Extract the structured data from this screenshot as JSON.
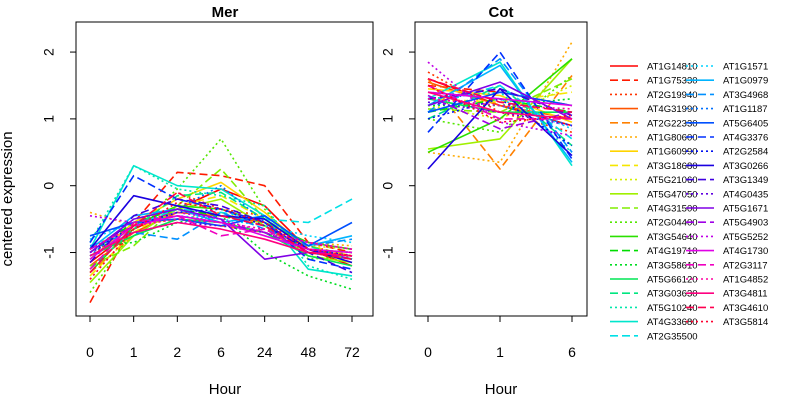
{
  "colors": {
    "AT1G14810": "#FF0000",
    "AT1G75330": "#FF1A00",
    "AT2G19940": "#FF3300",
    "AT4G31990": "#FF5500",
    "AT2G22330": "#FF8000",
    "AT1G80600": "#FFAA00",
    "AT1G60990": "#FFD400",
    "AT3G18680": "#F5E600",
    "AT5G21060": "#D4F000",
    "AT5G47050": "#A0F000",
    "AT4G31500": "#80EE00",
    "AT2G04400": "#55E600",
    "AT3G54640": "#2BE000",
    "AT4G19710": "#00DD00",
    "AT3G58610": "#00DD22",
    "AT5G66120": "#00E655",
    "AT3G03630": "#00E680",
    "AT5G10240": "#00E6AA",
    "AT4G33680": "#00E6CC",
    "AT2G35500": "#00E0E6",
    "AT1G1571": "#00D4FF",
    "AT1G0979": "#00B4FF",
    "AT3G4968": "#0090FF",
    "AT1G1187": "#0070FF",
    "AT5G6405": "#0050FF",
    "AT4G3376": "#0030FF",
    "AT2G2584": "#0010F0",
    "AT3G0266": "#1A00E0",
    "AT3G1349": "#4000E0",
    "AT4G0435": "#6000E0",
    "AT5G1671": "#8000E6",
    "AT5G4903": "#A000E6",
    "AT5G5252": "#C000E6",
    "AT4G1730": "#E000E6",
    "AT2G3117": "#F000C0",
    "AT1G4852": "#FF00A0",
    "AT3G4811": "#FF0080",
    "AT3G4610": "#FF0050",
    "AT3G5814": "#FF0030"
  },
  "chart_data": [
    {
      "type": "line",
      "title": "Mer",
      "xlabel": "Hour",
      "ylabel": "centered expression",
      "categories": [
        "0",
        "1",
        "2",
        "6",
        "24",
        "48",
        "72"
      ],
      "ylim": [
        -1.95,
        2.45
      ],
      "yticks": [
        -1,
        0,
        1,
        2
      ],
      "grid": false,
      "series": [
        {
          "name": "AT1G14810",
          "style": "solid",
          "values": [
            -1.15,
            -0.65,
            -0.35,
            -0.05,
            -0.3,
            -0.95,
            -1.2
          ]
        },
        {
          "name": "AT1G75330",
          "style": "dashed",
          "values": [
            -1.75,
            -0.55,
            0.2,
            0.15,
            0.0,
            -0.85,
            -1.0
          ]
        },
        {
          "name": "AT2G19940",
          "style": "dotted",
          "values": [
            -1.05,
            -0.6,
            -0.1,
            -0.35,
            -0.45,
            -0.9,
            -1.05
          ]
        },
        {
          "name": "AT4G31990",
          "style": "solid",
          "values": [
            -1.2,
            -0.7,
            -0.4,
            -0.45,
            -0.55,
            -1.0,
            -1.1
          ]
        },
        {
          "name": "AT2G22330",
          "style": "dashed",
          "values": [
            -1.3,
            -0.75,
            -0.5,
            -0.6,
            -0.7,
            -0.95,
            -1.05
          ]
        },
        {
          "name": "AT1G80600",
          "style": "dotted",
          "values": [
            -0.4,
            -0.6,
            -0.5,
            -0.4,
            -0.6,
            -0.85,
            -0.9
          ]
        },
        {
          "name": "AT1G60990",
          "style": "solid",
          "values": [
            -1.1,
            -0.55,
            -0.2,
            0.05,
            -0.4,
            -0.95,
            -1.0
          ]
        },
        {
          "name": "AT3G18680",
          "style": "dashed",
          "values": [
            -1.35,
            -0.7,
            -0.3,
            -0.15,
            -0.5,
            -0.9,
            -1.05
          ]
        },
        {
          "name": "AT5G21060",
          "style": "dotted",
          "values": [
            -0.95,
            -0.55,
            -0.45,
            -0.55,
            -0.7,
            -0.9,
            -0.95
          ]
        },
        {
          "name": "AT5G47050",
          "style": "solid",
          "values": [
            -1.45,
            -0.75,
            -0.35,
            -0.2,
            -0.6,
            -1.05,
            -1.15
          ]
        },
        {
          "name": "AT4G31500",
          "style": "dashed",
          "values": [
            -1.2,
            -0.9,
            -0.3,
            0.25,
            -0.5,
            -0.95,
            -1.1
          ]
        },
        {
          "name": "AT2G04400",
          "style": "dotted",
          "values": [
            -1.6,
            -0.65,
            -0.05,
            0.7,
            -0.35,
            -1.1,
            -1.05
          ]
        },
        {
          "name": "AT3G54640",
          "style": "solid",
          "values": [
            -1.3,
            -0.6,
            -0.3,
            -0.35,
            -0.55,
            -0.85,
            -0.95
          ]
        },
        {
          "name": "AT4G19710",
          "style": "dashed",
          "values": [
            -1.0,
            -0.55,
            -0.35,
            -0.45,
            -0.6,
            -0.95,
            -1.0
          ]
        },
        {
          "name": "AT3G58610",
          "style": "dotted",
          "values": [
            -0.9,
            -0.85,
            -0.55,
            -0.45,
            -1.0,
            -1.35,
            -1.55
          ]
        },
        {
          "name": "AT5G66120",
          "style": "solid",
          "values": [
            -1.05,
            -0.75,
            -0.5,
            -0.55,
            -0.7,
            -1.05,
            -1.2
          ]
        },
        {
          "name": "AT3G03630",
          "style": "dashed",
          "values": [
            -1.25,
            -0.65,
            -0.15,
            -0.1,
            -0.5,
            -0.9,
            -1.1
          ]
        },
        {
          "name": "AT5G10240",
          "style": "dotted",
          "values": [
            -0.85,
            0.3,
            -0.05,
            -0.15,
            -0.3,
            -1.2,
            -1.4
          ]
        },
        {
          "name": "AT4G33680",
          "style": "solid",
          "values": [
            -0.95,
            0.3,
            0.0,
            -0.05,
            -0.45,
            -1.25,
            -1.35
          ]
        },
        {
          "name": "AT2G35500",
          "style": "dashed",
          "values": [
            -1.1,
            -0.6,
            -0.35,
            -0.4,
            -0.5,
            -0.55,
            -0.2
          ]
        },
        {
          "name": "AT1G1571",
          "style": "dotted",
          "values": [
            -0.8,
            -0.55,
            -0.45,
            -0.5,
            -0.6,
            -0.75,
            -0.85
          ]
        },
        {
          "name": "AT1G0979",
          "style": "solid",
          "values": [
            -0.95,
            -0.45,
            -0.35,
            -0.55,
            -0.45,
            -0.9,
            -0.75
          ]
        },
        {
          "name": "AT3G4968",
          "style": "dashed",
          "values": [
            -0.9,
            -0.7,
            -0.8,
            -0.4,
            -0.65,
            -0.9,
            -0.8
          ]
        },
        {
          "name": "AT1G1187",
          "style": "dotted",
          "values": [
            -1.05,
            -0.5,
            -0.35,
            0.0,
            -0.55,
            -1.0,
            -1.1
          ]
        },
        {
          "name": "AT5G6405",
          "style": "solid",
          "values": [
            -0.75,
            -0.55,
            -0.5,
            -0.6,
            -0.45,
            -0.9,
            -0.55
          ]
        },
        {
          "name": "AT4G3376",
          "style": "dashed",
          "values": [
            -0.85,
            0.15,
            -0.2,
            -0.35,
            -0.55,
            -1.1,
            -1.25
          ]
        },
        {
          "name": "AT2G2584",
          "style": "dotted",
          "values": [
            -1.0,
            -0.6,
            -0.4,
            -0.35,
            -0.6,
            -0.95,
            -1.05
          ]
        },
        {
          "name": "AT3G0266",
          "style": "solid",
          "values": [
            -0.95,
            -0.15,
            -0.3,
            -0.45,
            -0.5,
            -0.95,
            -1.15
          ]
        },
        {
          "name": "AT3G1349",
          "style": "dashed",
          "values": [
            -1.15,
            -0.45,
            -0.2,
            -0.3,
            -0.55,
            -1.0,
            -1.3
          ]
        },
        {
          "name": "AT4G0435",
          "style": "dotted",
          "values": [
            -1.0,
            -0.7,
            -0.55,
            -0.6,
            -0.7,
            -0.95,
            -1.0
          ]
        },
        {
          "name": "AT5G1671",
          "style": "solid",
          "values": [
            -1.0,
            -0.5,
            -0.35,
            -0.5,
            -1.1,
            -1.0,
            -1.05
          ]
        },
        {
          "name": "AT5G4903",
          "style": "dashed",
          "values": [
            -0.95,
            -0.6,
            -0.45,
            -0.55,
            -0.7,
            -0.95,
            -1.1
          ]
        },
        {
          "name": "AT5G5252",
          "style": "dotted",
          "values": [
            -0.45,
            -0.55,
            -0.4,
            -0.5,
            -0.7,
            -0.85,
            -0.95
          ]
        },
        {
          "name": "AT4G1730",
          "style": "solid",
          "values": [
            -1.1,
            -0.6,
            -0.45,
            -0.55,
            -0.75,
            -0.95,
            -1.0
          ]
        },
        {
          "name": "AT2G3117",
          "style": "dashed",
          "values": [
            -1.25,
            -0.55,
            -0.45,
            -0.75,
            -0.65,
            -1.0,
            -1.05
          ]
        },
        {
          "name": "AT1G4852",
          "style": "dotted",
          "values": [
            -0.95,
            -0.6,
            -0.5,
            -0.55,
            -0.65,
            -0.85,
            -0.95
          ]
        },
        {
          "name": "AT3G4811",
          "style": "solid",
          "values": [
            -1.05,
            -0.7,
            -0.55,
            -0.65,
            -0.8,
            -1.0,
            -1.05
          ]
        },
        {
          "name": "AT3G4610",
          "style": "dashed",
          "values": [
            -1.3,
            -0.6,
            -0.1,
            -0.45,
            -0.6,
            -1.0,
            -1.1
          ]
        },
        {
          "name": "AT3G5814",
          "style": "dotted",
          "values": [
            -1.4,
            -0.65,
            -0.25,
            -0.35,
            -0.55,
            -0.95,
            -1.05
          ]
        }
      ]
    },
    {
      "type": "line",
      "title": "Cot",
      "xlabel": "Hour",
      "categories": [
        "0",
        "1",
        "6"
      ],
      "ylim": [
        -1.95,
        2.45
      ],
      "yticks": [
        -1,
        0,
        1,
        2
      ],
      "grid": false,
      "series": [
        {
          "name": "AT1G14810",
          "style": "solid",
          "values": [
            1.6,
            1.2,
            0.9
          ]
        },
        {
          "name": "AT1G75330",
          "style": "dashed",
          "values": [
            1.5,
            1.4,
            1.2
          ]
        },
        {
          "name": "AT2G19940",
          "style": "dotted",
          "values": [
            1.7,
            1.1,
            0.8
          ]
        },
        {
          "name": "AT4G31990",
          "style": "solid",
          "values": [
            1.55,
            1.2,
            1.0
          ]
        },
        {
          "name": "AT2G22330",
          "style": "dashed",
          "values": [
            1.6,
            0.25,
            1.65
          ]
        },
        {
          "name": "AT1G80600",
          "style": "dotted",
          "values": [
            0.5,
            0.35,
            2.15
          ]
        },
        {
          "name": "AT1G60990",
          "style": "solid",
          "values": [
            1.45,
            1.35,
            0.95
          ]
        },
        {
          "name": "AT3G18680",
          "style": "dashed",
          "values": [
            1.3,
            1.25,
            1.4
          ]
        },
        {
          "name": "AT5G21060",
          "style": "dotted",
          "values": [
            1.2,
            1.0,
            1.5
          ]
        },
        {
          "name": "AT5G47050",
          "style": "solid",
          "values": [
            0.55,
            0.7,
            1.9
          ]
        },
        {
          "name": "AT4G31500",
          "style": "dashed",
          "values": [
            1.15,
            1.1,
            1.6
          ]
        },
        {
          "name": "AT2G04400",
          "style": "dotted",
          "values": [
            1.0,
            0.8,
            1.65
          ]
        },
        {
          "name": "AT3G54640",
          "style": "solid",
          "values": [
            0.5,
            1.0,
            1.9
          ]
        },
        {
          "name": "AT4G19710",
          "style": "dashed",
          "values": [
            1.1,
            1.3,
            1.1
          ]
        },
        {
          "name": "AT3G58610",
          "style": "dotted",
          "values": [
            1.2,
            1.2,
            1.3
          ]
        },
        {
          "name": "AT5G66120",
          "style": "solid",
          "values": [
            1.3,
            1.1,
            1.1
          ]
        },
        {
          "name": "AT3G03630",
          "style": "dashed",
          "values": [
            1.0,
            1.5,
            0.6
          ]
        },
        {
          "name": "AT5G10240",
          "style": "dotted",
          "values": [
            1.3,
            1.4,
            0.5
          ]
        },
        {
          "name": "AT4G33680",
          "style": "solid",
          "values": [
            1.3,
            1.85,
            0.3
          ]
        },
        {
          "name": "AT2G35500",
          "style": "dashed",
          "values": [
            1.2,
            1.5,
            0.7
          ]
        },
        {
          "name": "AT1G1571",
          "style": "dotted",
          "values": [
            1.4,
            1.3,
            0.85
          ]
        },
        {
          "name": "AT1G0979",
          "style": "solid",
          "values": [
            1.2,
            1.8,
            0.35
          ]
        },
        {
          "name": "AT3G4968",
          "style": "dashed",
          "values": [
            1.1,
            1.9,
            0.5
          ]
        },
        {
          "name": "AT1G1187",
          "style": "dotted",
          "values": [
            1.3,
            1.2,
            0.9
          ]
        },
        {
          "name": "AT5G6405",
          "style": "solid",
          "values": [
            1.1,
            1.4,
            1.2
          ]
        },
        {
          "name": "AT4G3376",
          "style": "dashed",
          "values": [
            0.8,
            2.0,
            0.4
          ]
        },
        {
          "name": "AT2G2584",
          "style": "dotted",
          "values": [
            1.0,
            1.3,
            0.6
          ]
        },
        {
          "name": "AT3G0266",
          "style": "solid",
          "values": [
            0.25,
            1.45,
            0.45
          ]
        },
        {
          "name": "AT3G1349",
          "style": "dashed",
          "values": [
            1.3,
            1.45,
            1.05
          ]
        },
        {
          "name": "AT4G0435",
          "style": "dotted",
          "values": [
            1.25,
            1.1,
            0.9
          ]
        },
        {
          "name": "AT5G1671",
          "style": "solid",
          "values": [
            1.2,
            1.55,
            1.0
          ]
        },
        {
          "name": "AT5G4903",
          "style": "dashed",
          "values": [
            1.35,
            0.85,
            1.1
          ]
        },
        {
          "name": "AT5G5252",
          "style": "dotted",
          "values": [
            1.85,
            0.95,
            0.75
          ]
        },
        {
          "name": "AT4G1730",
          "style": "solid",
          "values": [
            1.4,
            1.3,
            1.2
          ]
        },
        {
          "name": "AT2G3117",
          "style": "dashed",
          "values": [
            1.5,
            1.0,
            1.0
          ]
        },
        {
          "name": "AT1G4852",
          "style": "dotted",
          "values": [
            1.3,
            1.2,
            1.15
          ]
        },
        {
          "name": "AT3G4811",
          "style": "solid",
          "values": [
            1.4,
            1.1,
            1.0
          ]
        },
        {
          "name": "AT3G4610",
          "style": "dashed",
          "values": [
            1.6,
            1.25,
            1.1
          ]
        },
        {
          "name": "AT3G5814",
          "style": "dotted",
          "values": [
            1.5,
            0.95,
            1.05
          ]
        }
      ]
    }
  ],
  "legend": {
    "placement": "right",
    "columns": [
      [
        "AT1G14810",
        "AT1G75330",
        "AT2G19940",
        "AT4G31990",
        "AT2G22330",
        "AT1G80600",
        "AT1G60990",
        "AT3G18680",
        "AT5G21060",
        "AT5G47050",
        "AT4G31500",
        "AT2G04400",
        "AT3G54640",
        "AT4G19710",
        "AT3G58610",
        "AT5G66120",
        "AT3G03630",
        "AT5G10240",
        "AT4G33680",
        "AT2G35500"
      ],
      [
        "AT1G1571",
        "AT1G0979",
        "AT3G4968",
        "AT1G1187",
        "AT5G6405",
        "AT4G3376",
        "AT2G2584",
        "AT3G0266",
        "AT3G1349",
        "AT4G0435",
        "AT5G1671",
        "AT5G4903",
        "AT5G5252",
        "AT4G1730",
        "AT2G3117",
        "AT1G4852",
        "AT3G4811",
        "AT3G4610",
        "AT3G5814"
      ]
    ]
  }
}
